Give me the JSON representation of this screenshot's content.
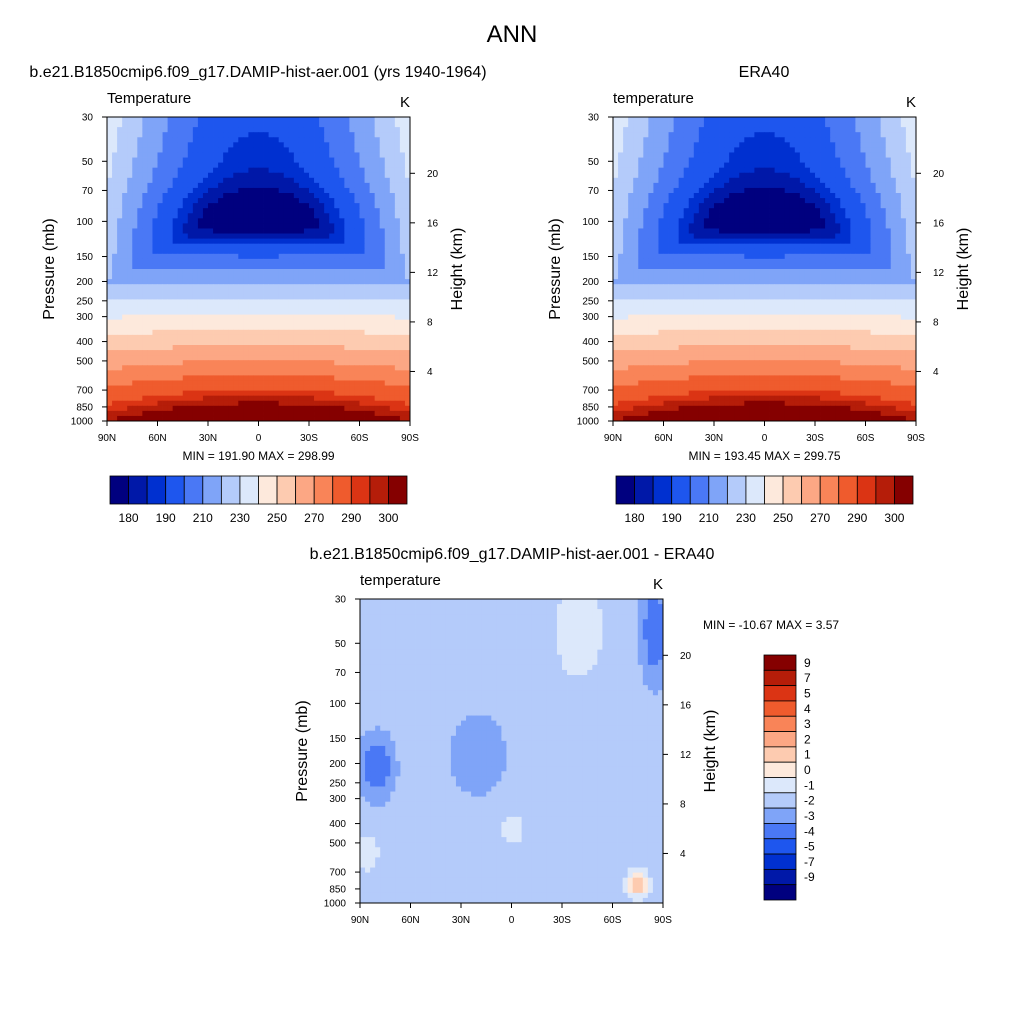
{
  "figure": {
    "title": "ANN"
  },
  "chart_data": [
    {
      "type": "heatmap",
      "title": "b.e21.B1850cmip6.f09_g17.DAMIP-hist-aer.001 (yrs 1940-1964)",
      "variable": "Temperature",
      "units": "K",
      "ylabel": "Pressure (mb)",
      "y2label": "Height (km)",
      "xlabel": "",
      "x_ticks": [
        "90N",
        "60N",
        "30N",
        "0",
        "30S",
        "60S",
        "90S"
      ],
      "y_ticks": [
        "30",
        "50",
        "70",
        "100",
        "150",
        "200",
        "250",
        "300",
        "400",
        "500",
        "700",
        "850",
        "1000"
      ],
      "y2_ticks": [
        "4",
        "8",
        "12",
        "16",
        "20"
      ],
      "min_max_text": "MIN = 191.90  MAX = 298.99",
      "min": 191.9,
      "max": 298.99,
      "colorbar_labels": [
        "180",
        "190",
        "210",
        "230",
        "250",
        "270",
        "290",
        "300"
      ],
      "colorbar_colors": [
        "#00007f",
        "#0018a8",
        "#0030d0",
        "#1e56ee",
        "#4a78f5",
        "#7fa4f8",
        "#b4cbfa",
        "#dce8fb",
        "#fde9dc",
        "#fdcbb0",
        "#fca784",
        "#f98458",
        "#ef5b2d",
        "#db3414",
        "#b51d09",
        "#850000"
      ]
    },
    {
      "type": "heatmap",
      "title": "ERA40",
      "variable": "temperature",
      "units": "K",
      "ylabel": "Pressure (mb)",
      "y2label": "Height (km)",
      "xlabel": "",
      "x_ticks": [
        "90N",
        "60N",
        "30N",
        "0",
        "30S",
        "60S",
        "90S"
      ],
      "y_ticks": [
        "30",
        "50",
        "70",
        "100",
        "150",
        "200",
        "250",
        "300",
        "400",
        "500",
        "700",
        "850",
        "1000"
      ],
      "y2_ticks": [
        "4",
        "8",
        "12",
        "16",
        "20"
      ],
      "min_max_text": "MIN = 193.45  MAX = 299.75",
      "min": 193.45,
      "max": 299.75,
      "colorbar_labels": [
        "180",
        "190",
        "210",
        "230",
        "250",
        "270",
        "290",
        "300"
      ],
      "colorbar_colors": [
        "#00007f",
        "#0018a8",
        "#0030d0",
        "#1e56ee",
        "#4a78f5",
        "#7fa4f8",
        "#b4cbfa",
        "#dce8fb",
        "#fde9dc",
        "#fdcbb0",
        "#fca784",
        "#f98458",
        "#ef5b2d",
        "#db3414",
        "#b51d09",
        "#850000"
      ]
    },
    {
      "type": "heatmap",
      "title": "b.e21.B1850cmip6.f09_g17.DAMIP-hist-aer.001 - ERA40",
      "variable": "temperature",
      "units": "K",
      "ylabel": "Pressure (mb)",
      "y2label": "Height (km)",
      "xlabel": "",
      "x_ticks": [
        "90N",
        "60N",
        "30N",
        "0",
        "30S",
        "60S",
        "90S"
      ],
      "y_ticks": [
        "30",
        "50",
        "70",
        "100",
        "150",
        "200",
        "250",
        "300",
        "400",
        "500",
        "700",
        "850",
        "1000"
      ],
      "y2_ticks": [
        "4",
        "8",
        "12",
        "16",
        "20"
      ],
      "min_max_text": "MIN = -10.67  MAX =   3.57",
      "min": -10.67,
      "max": 3.57,
      "colorbar_labels": [
        "9",
        "7",
        "5",
        "4",
        "3",
        "2",
        "1",
        "0",
        "-1",
        "-2",
        "-3",
        "-4",
        "-5",
        "-7",
        "-9"
      ],
      "colorbar_colors": [
        "#850000",
        "#b51d09",
        "#db3414",
        "#ef5b2d",
        "#f98458",
        "#fca784",
        "#fdcbb0",
        "#fde9dc",
        "#dce8fb",
        "#b4cbfa",
        "#7fa4f8",
        "#4a78f5",
        "#1e56ee",
        "#0030d0",
        "#0018a8",
        "#00007f"
      ]
    }
  ]
}
